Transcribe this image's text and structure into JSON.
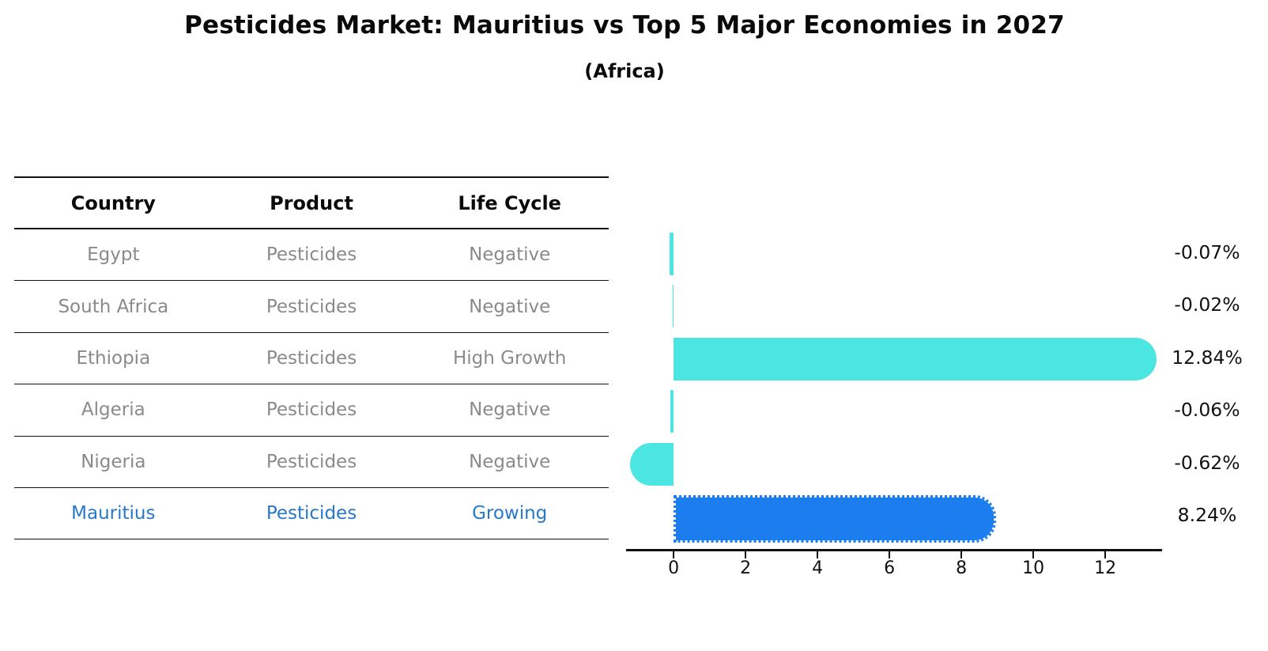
{
  "title": "Pesticides Market: Mauritius vs Top 5 Major Economies in 2027",
  "subtitle": "(Africa)",
  "table": {
    "headers": {
      "country": "Country",
      "product": "Product",
      "life_cycle": "Life Cycle"
    },
    "rows": [
      {
        "country": "Egypt",
        "product": "Pesticides",
        "life_cycle": "Negative"
      },
      {
        "country": "South Africa",
        "product": "Pesticides",
        "life_cycle": "Negative"
      },
      {
        "country": "Ethiopia",
        "product": "Pesticides",
        "life_cycle": "High Growth"
      },
      {
        "country": "Algeria",
        "product": "Pesticides",
        "life_cycle": "Negative"
      },
      {
        "country": "Nigeria",
        "product": "Pesticides",
        "life_cycle": "Negative"
      },
      {
        "country": "Mauritius",
        "product": "Pesticides",
        "life_cycle": "Growing"
      }
    ]
  },
  "chart_data": {
    "type": "bar",
    "orientation": "horizontal",
    "categories": [
      "Egypt",
      "South Africa",
      "Ethiopia",
      "Algeria",
      "Nigeria",
      "Mauritius"
    ],
    "values": [
      -0.07,
      -0.02,
      12.84,
      -0.06,
      -0.62,
      8.24
    ],
    "value_labels": [
      "-0.07%",
      "-0.02%",
      "12.84%",
      "-0.06%",
      "-0.62%",
      "8.24%"
    ],
    "xticks": [
      0,
      2,
      4,
      6,
      8,
      10,
      12
    ],
    "xlim": [
      -1.32,
      13.58
    ],
    "grid": false,
    "legend": "none",
    "bar_color": "#4be6e1",
    "highlight_color": "#1b7dee",
    "highlight_category": "Mauritius",
    "highlight_text_color": "#2878c8",
    "muted_text_color": "#8a8a8a",
    "axis_color": "#111111"
  }
}
